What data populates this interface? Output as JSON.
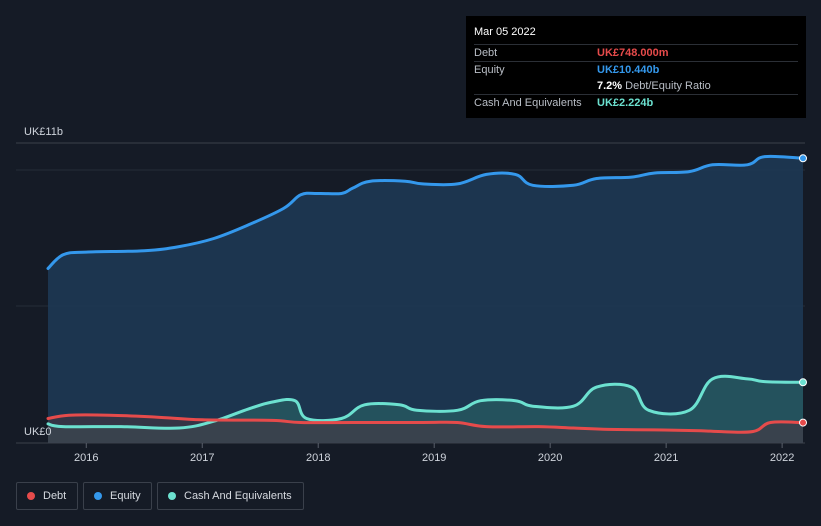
{
  "tooltip": {
    "date": "Mar 05 2022",
    "debt_label": "Debt",
    "debt_value": "UK£748.000m",
    "equity_label": "Equity",
    "equity_value": "UK£10.440b",
    "ratio_value": "7.2%",
    "ratio_label": "Debt/Equity Ratio",
    "cash_label": "Cash And Equivalents",
    "cash_value": "UK£2.224b"
  },
  "legend": {
    "debt": "Debt",
    "equity": "Equity",
    "cash": "Cash And Equivalents"
  },
  "colors": {
    "background": "#151b26",
    "debt": "#e64b4b",
    "equity": "#3498ec",
    "cash": "#6ce1d0"
  },
  "chart_data": {
    "type": "area",
    "ylabel_top": "UK£11b",
    "ylabel_bottom": "UK£0",
    "ylim": [
      0,
      11
    ],
    "xlim": [
      2015.67,
      2022.18
    ],
    "x_ticks": [
      "2016",
      "2017",
      "2018",
      "2019",
      "2020",
      "2021",
      "2022"
    ],
    "series": [
      {
        "name": "Equity",
        "x": [
          2015.67,
          2015.8,
          2016.0,
          2016.5,
          2016.8,
          2017.1,
          2017.4,
          2017.7,
          2017.85,
          2018.0,
          2018.2,
          2018.3,
          2018.45,
          2018.75,
          2018.9,
          2019.2,
          2019.45,
          2019.7,
          2019.85,
          2020.2,
          2020.4,
          2020.7,
          2020.9,
          2021.2,
          2021.4,
          2021.7,
          2021.85,
          2022.18
        ],
        "values": [
          6.4,
          6.9,
          7.0,
          7.05,
          7.2,
          7.5,
          8.0,
          8.6,
          9.1,
          9.15,
          9.15,
          9.35,
          9.6,
          9.6,
          9.5,
          9.5,
          9.85,
          9.85,
          9.45,
          9.45,
          9.7,
          9.75,
          9.9,
          9.95,
          10.2,
          10.2,
          10.5,
          10.44
        ]
      },
      {
        "name": "Cash And Equivalents",
        "x": [
          2015.67,
          2015.8,
          2016.3,
          2016.8,
          2017.1,
          2017.4,
          2017.6,
          2017.8,
          2017.9,
          2018.2,
          2018.4,
          2018.7,
          2018.85,
          2019.2,
          2019.4,
          2019.7,
          2019.85,
          2020.2,
          2020.4,
          2020.7,
          2020.85,
          2021.2,
          2021.4,
          2021.7,
          2021.85,
          2022.18
        ],
        "values": [
          0.7,
          0.6,
          0.6,
          0.55,
          0.8,
          1.25,
          1.5,
          1.55,
          0.9,
          0.9,
          1.4,
          1.4,
          1.2,
          1.2,
          1.55,
          1.55,
          1.35,
          1.35,
          2.05,
          2.05,
          1.2,
          1.2,
          2.35,
          2.35,
          2.25,
          2.224
        ]
      },
      {
        "name": "Debt",
        "x": [
          2015.67,
          2015.85,
          2016.2,
          2016.6,
          2017.0,
          2017.6,
          2017.85,
          2018.3,
          2018.9,
          2019.2,
          2019.45,
          2019.9,
          2020.2,
          2020.5,
          2020.9,
          2021.3,
          2021.45,
          2021.75,
          2021.9,
          2022.18
        ],
        "values": [
          0.9,
          1.02,
          1.02,
          0.95,
          0.85,
          0.83,
          0.75,
          0.75,
          0.75,
          0.75,
          0.6,
          0.6,
          0.55,
          0.5,
          0.48,
          0.45,
          0.42,
          0.42,
          0.75,
          0.748
        ]
      }
    ]
  }
}
